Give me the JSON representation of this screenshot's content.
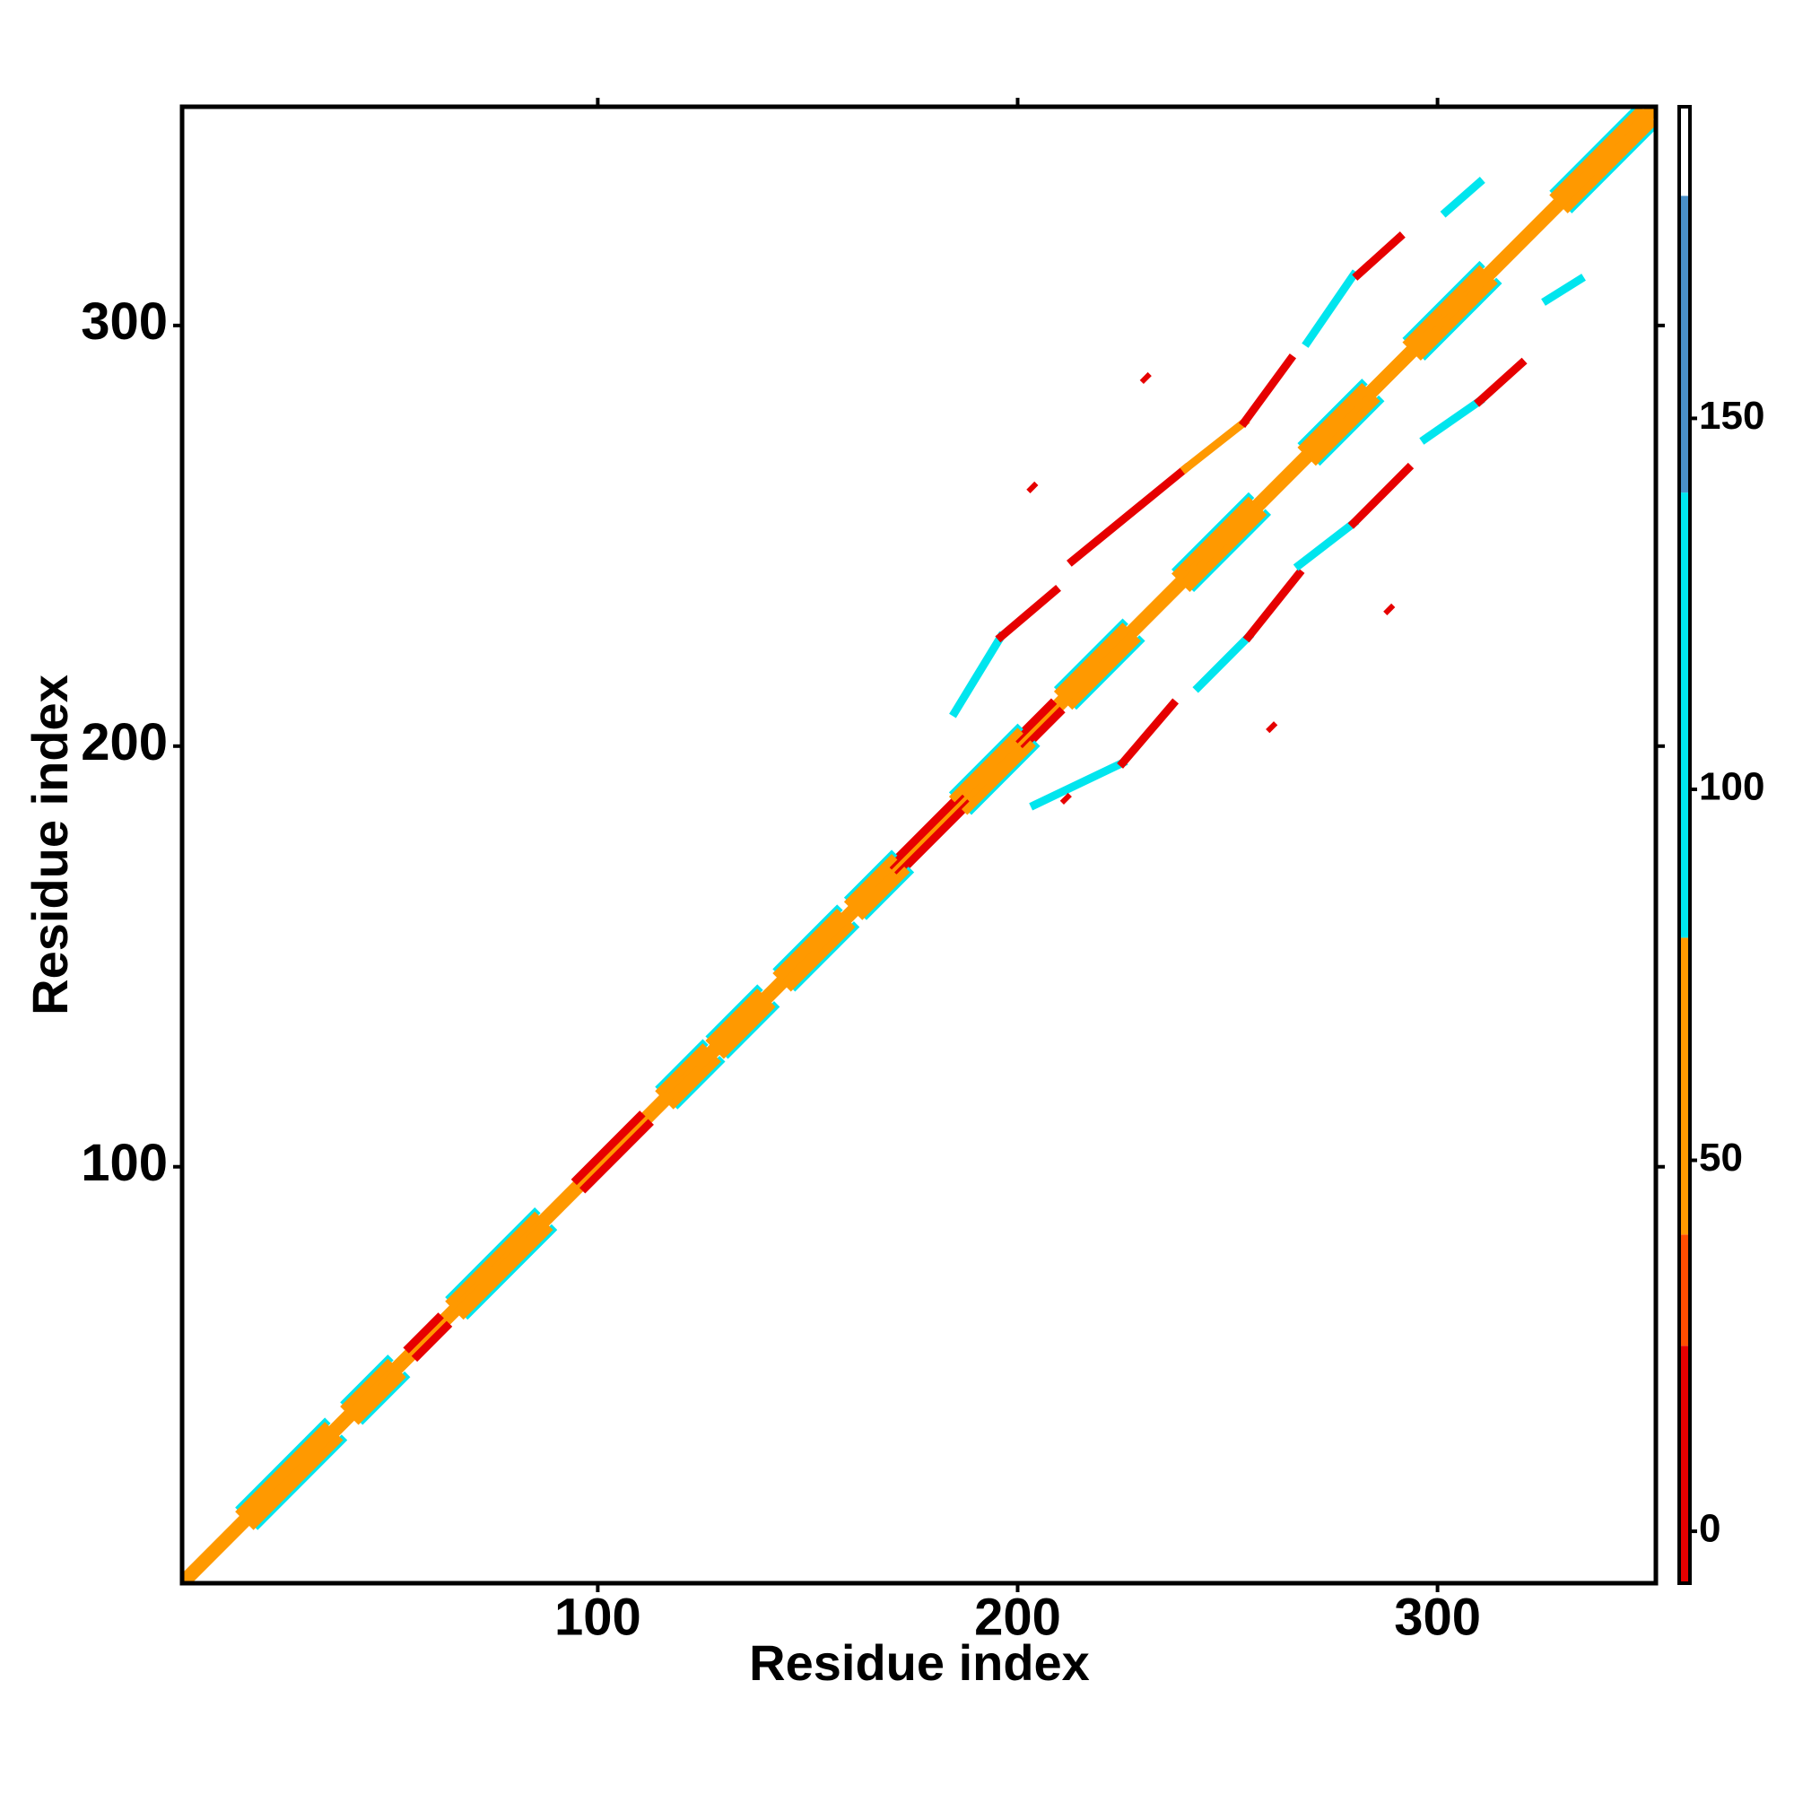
{
  "chart_data": {
    "type": "heatmap",
    "xlabel": "Residue index",
    "ylabel": "Residue index",
    "xlim": [
      1,
      352
    ],
    "ylim": [
      1,
      352
    ],
    "xticks": [
      100,
      200,
      300
    ],
    "yticks": [
      100,
      200,
      300
    ],
    "segments": [
      [
        1,
        2,
        351,
        352,
        40
      ],
      [
        2,
        1,
        352,
        351,
        40
      ],
      [
        55,
        57,
        62,
        64,
        5
      ],
      [
        57,
        55,
        64,
        62,
        5
      ],
      [
        95,
        97,
        110,
        112,
        5
      ],
      [
        97,
        95,
        112,
        110,
        5
      ],
      [
        170,
        172,
        186,
        188,
        5
      ],
      [
        172,
        170,
        188,
        186,
        5
      ],
      [
        200,
        202,
        208,
        210,
        5
      ],
      [
        202,
        200,
        210,
        208,
        5
      ],
      [
        15,
        19,
        35,
        39,
        110
      ],
      [
        19,
        15,
        39,
        35,
        110
      ],
      [
        15,
        18,
        35,
        38,
        60
      ],
      [
        18,
        15,
        38,
        35,
        60
      ],
      [
        40,
        44,
        50,
        54,
        110
      ],
      [
        44,
        40,
        54,
        50,
        110
      ],
      [
        40,
        43,
        50,
        53,
        60
      ],
      [
        43,
        40,
        53,
        50,
        60
      ],
      [
        65,
        69,
        85,
        89,
        110
      ],
      [
        69,
        65,
        89,
        85,
        110
      ],
      [
        65,
        68,
        85,
        88,
        60
      ],
      [
        68,
        65,
        88,
        85,
        60
      ],
      [
        115,
        119,
        125,
        129,
        110
      ],
      [
        119,
        115,
        129,
        125,
        110
      ],
      [
        115,
        118,
        125,
        128,
        60
      ],
      [
        118,
        115,
        128,
        125,
        60
      ],
      [
        127,
        131,
        138,
        142,
        110
      ],
      [
        131,
        127,
        142,
        138,
        110
      ],
      [
        127,
        130,
        138,
        141,
        60
      ],
      [
        130,
        127,
        141,
        138,
        60
      ],
      [
        143,
        147,
        157,
        161,
        110
      ],
      [
        147,
        143,
        161,
        157,
        110
      ],
      [
        143,
        146,
        157,
        160,
        60
      ],
      [
        146,
        143,
        160,
        157,
        60
      ],
      [
        160,
        164,
        170,
        174,
        110
      ],
      [
        164,
        160,
        174,
        170,
        110
      ],
      [
        160,
        163,
        170,
        173,
        60
      ],
      [
        163,
        160,
        173,
        170,
        60
      ],
      [
        185,
        189,
        200,
        204,
        110
      ],
      [
        189,
        185,
        204,
        200,
        110
      ],
      [
        185,
        188,
        200,
        203,
        60
      ],
      [
        188,
        185,
        203,
        200,
        60
      ],
      [
        210,
        214,
        225,
        229,
        110
      ],
      [
        214,
        210,
        229,
        225,
        110
      ],
      [
        210,
        213,
        225,
        228,
        60
      ],
      [
        213,
        210,
        228,
        225,
        60
      ],
      [
        238,
        242,
        255,
        259,
        110
      ],
      [
        242,
        238,
        259,
        255,
        110
      ],
      [
        238,
        241,
        255,
        258,
        60
      ],
      [
        241,
        238,
        258,
        255,
        60
      ],
      [
        268,
        272,
        282,
        286,
        110
      ],
      [
        272,
        268,
        286,
        282,
        110
      ],
      [
        268,
        271,
        282,
        285,
        60
      ],
      [
        271,
        268,
        285,
        282,
        60
      ],
      [
        293,
        297,
        310,
        314,
        110
      ],
      [
        297,
        293,
        314,
        310,
        110
      ],
      [
        293,
        296,
        310,
        313,
        60
      ],
      [
        296,
        293,
        313,
        310,
        60
      ],
      [
        328,
        332,
        348,
        352,
        110
      ],
      [
        332,
        328,
        352,
        348,
        110
      ],
      [
        328,
        331,
        348,
        351,
        60
      ],
      [
        331,
        328,
        351,
        348,
        60
      ],
      [
        185,
        208,
        196,
        226,
        110
      ],
      [
        196,
        226,
        209,
        237,
        5
      ],
      [
        213,
        244,
        240,
        266,
        5
      ],
      [
        240,
        266,
        254,
        277,
        60
      ],
      [
        254,
        277,
        265,
        292,
        5
      ],
      [
        269,
        296,
        280,
        312,
        110
      ],
      [
        281,
        312,
        291,
        321,
        5
      ],
      [
        302,
        327,
        310,
        334,
        110
      ],
      [
        204,
        186,
        225,
        196,
        110
      ],
      [
        225,
        196,
        237,
        210,
        5
      ],
      [
        243,
        214,
        255,
        226,
        110
      ],
      [
        255,
        226,
        267,
        241,
        5
      ],
      [
        267,
        243,
        280,
        253,
        110
      ],
      [
        280,
        253,
        293,
        266,
        5
      ],
      [
        297,
        273,
        310,
        282,
        110
      ],
      [
        310,
        282,
        320,
        291,
        5
      ],
      [
        326,
        306,
        334,
        311,
        110
      ],
      [
        230,
        287,
        231,
        288,
        5
      ],
      [
        203,
        261,
        204,
        262,
        5
      ],
      [
        288,
        232,
        289,
        233,
        5
      ],
      [
        260,
        204,
        261,
        205,
        5
      ],
      [
        211,
        187,
        212,
        188,
        5
      ]
    ],
    "colorbar": {
      "bins": [
        -7,
        25,
        40,
        80,
        140,
        180,
        192
      ],
      "colors": [
        "#e60000",
        "#ff4d00",
        "#ff9900",
        "#00e5ee",
        "#4a90c8",
        "#ffffff"
      ],
      "ticks": [
        0,
        50,
        100,
        150
      ]
    }
  }
}
